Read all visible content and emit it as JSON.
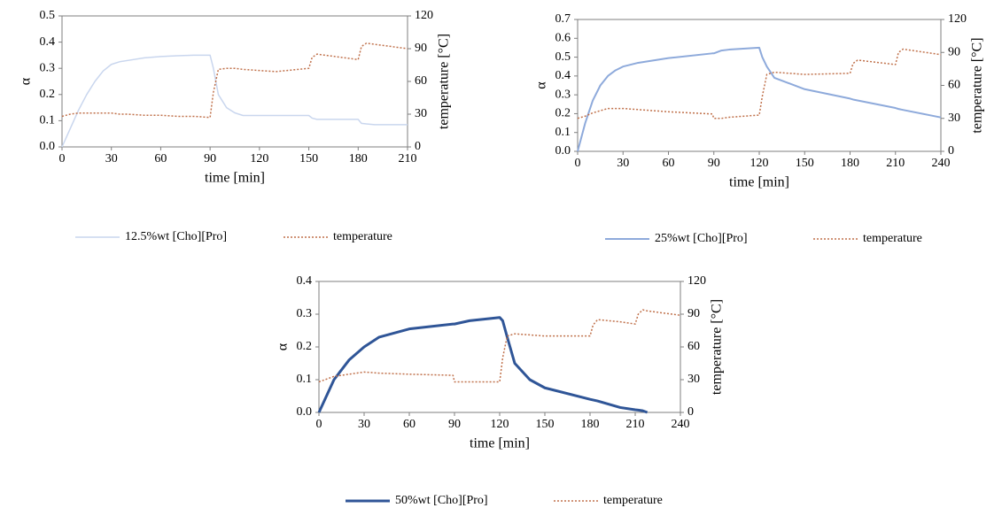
{
  "chart_data": [
    {
      "type": "line",
      "xlabel": "time [min]",
      "ylabel": "α",
      "y2label": "temperature [°C]",
      "x": [
        0,
        5,
        10,
        15,
        20,
        25,
        30,
        35,
        40,
        50,
        60,
        70,
        80,
        90,
        92,
        95,
        100,
        105,
        110,
        120,
        130,
        150,
        152,
        155,
        180,
        182,
        185,
        190,
        210
      ],
      "xlim": [
        0,
        210
      ],
      "xticks": [
        0,
        30,
        60,
        90,
        120,
        150,
        180,
        210
      ],
      "ylim": [
        0,
        0.5
      ],
      "yticks": [
        {
          "value": 0,
          "label": "0.0"
        },
        0.1,
        0.2,
        0.3,
        0.4,
        0.5
      ],
      "y2lim": [
        0,
        120
      ],
      "y2ticks": [
        0,
        30,
        60,
        90,
        120
      ],
      "series": [
        {
          "name": "12.5%wt [Cho][Pro]",
          "color": "#c9d6ee",
          "linewidth": 1.5,
          "linestyle": "solid",
          "values": [
            0,
            0.07,
            0.14,
            0.2,
            0.25,
            0.29,
            0.315,
            0.325,
            0.33,
            0.34,
            0.345,
            0.348,
            0.35,
            0.35,
            0.3,
            0.2,
            0.15,
            0.13,
            0.12,
            0.12,
            0.12,
            0.12,
            0.11,
            0.105,
            0.105,
            0.09,
            0.088,
            0.085,
            0.085
          ]
        },
        {
          "name": "temperature",
          "color": "#c0714b",
          "linewidth": 1.5,
          "linestyle": "dotted",
          "axis": "y2",
          "values": [
            28,
            30,
            31,
            31,
            31,
            31,
            31,
            30,
            30,
            29,
            29,
            28,
            28,
            27,
            50,
            71,
            72,
            72,
            71,
            70,
            69,
            72,
            82,
            85,
            80,
            92,
            95,
            94,
            90
          ]
        }
      ]
    },
    {
      "type": "line",
      "xlabel": "time [min]",
      "ylabel": "α",
      "y2label": "temperature [°C]",
      "x": [
        0,
        5,
        10,
        15,
        20,
        25,
        30,
        40,
        60,
        89,
        90,
        95,
        100,
        120,
        122,
        125,
        130,
        140,
        150,
        180,
        182,
        185,
        210,
        212,
        215,
        240
      ],
      "xlim": [
        0,
        240
      ],
      "xticks": [
        0,
        30,
        60,
        90,
        120,
        150,
        180,
        210,
        240
      ],
      "ylim": [
        0,
        0.7
      ],
      "yticks": [
        {
          "value": 0,
          "label": "0.0"
        },
        0.1,
        0.2,
        0.3,
        0.4,
        0.5,
        0.6,
        0.7
      ],
      "y2lim": [
        0,
        120
      ],
      "y2ticks": [
        0,
        30,
        60,
        90,
        120
      ],
      "series": [
        {
          "name": "25%wt [Cho][Pro]",
          "color": "#8eaadb",
          "linewidth": 2,
          "linestyle": "solid",
          "values": [
            0,
            0.15,
            0.27,
            0.35,
            0.4,
            0.43,
            0.45,
            0.47,
            0.495,
            0.52,
            0.52,
            0.535,
            0.54,
            0.55,
            0.5,
            0.45,
            0.39,
            0.36,
            0.33,
            0.28,
            0.275,
            0.27,
            0.23,
            0.225,
            0.22,
            0.18
          ]
        },
        {
          "name": "temperature",
          "color": "#c0714b",
          "linewidth": 1.5,
          "linestyle": "dotted",
          "axis": "y2",
          "values": [
            30,
            32,
            35,
            37,
            39,
            39,
            39,
            38,
            36,
            34,
            30,
            30,
            31,
            33,
            50,
            70,
            72,
            71,
            70,
            71,
            80,
            83,
            79,
            90,
            93,
            88
          ]
        }
      ]
    },
    {
      "type": "line",
      "xlabel": "time [min]",
      "ylabel": "α",
      "y2label": "temperature [°C]",
      "x": [
        0,
        10,
        20,
        30,
        40,
        60,
        89,
        90,
        100,
        120,
        122,
        125,
        130,
        140,
        150,
        180,
        182,
        185,
        200,
        210,
        212,
        215,
        218,
        240
      ],
      "xlim": [
        0,
        240
      ],
      "xticks": [
        0,
        30,
        60,
        90,
        120,
        150,
        180,
        210,
        240
      ],
      "ylim": [
        0,
        0.4
      ],
      "yticks": [
        {
          "value": 0,
          "label": "0.0"
        },
        0.1,
        0.2,
        0.3,
        0.4
      ],
      "y2lim": [
        0,
        120
      ],
      "y2ticks": [
        0,
        30,
        60,
        90,
        120
      ],
      "series": [
        {
          "name": "50%wt [Cho][Pro]",
          "color": "#2f5597",
          "linewidth": 3,
          "linestyle": "solid",
          "values": [
            0,
            0.1,
            0.16,
            0.2,
            0.23,
            0.255,
            0.27,
            0.27,
            0.28,
            0.29,
            0.28,
            0.23,
            0.15,
            0.1,
            0.075,
            0.04,
            0.038,
            0.035,
            0.015,
            0.008,
            0.007,
            0.005,
            0,
            null
          ]
        },
        {
          "name": "temperature",
          "color": "#c0714b",
          "linewidth": 1.5,
          "linestyle": "dotted",
          "axis": "y2",
          "values": [
            28,
            33,
            35,
            37,
            36,
            35,
            34,
            28,
            28,
            28,
            50,
            70,
            72,
            71,
            70,
            70,
            80,
            85,
            83,
            81,
            90,
            94,
            93,
            89
          ]
        }
      ]
    }
  ]
}
